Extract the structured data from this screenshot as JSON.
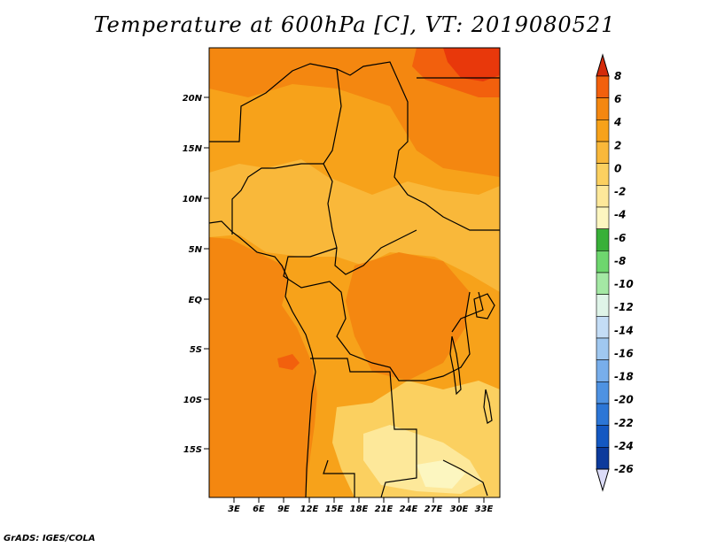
{
  "title": "Temperature at 600hPa [C], VT: 2019080521",
  "footer": "GrADS: IGES/COLA",
  "map": {
    "lon_range": [
      0,
      35
    ],
    "lat_range": [
      -20,
      25
    ],
    "lat_ticks": [
      "20N",
      "15N",
      "10N",
      "5N",
      "EQ",
      "5S",
      "10S",
      "15S"
    ],
    "lon_ticks": [
      "3E",
      "6E",
      "9E",
      "12E",
      "15E",
      "18E",
      "21E",
      "24E",
      "27E",
      "30E",
      "33E"
    ]
  },
  "colorbar": {
    "labels": [
      "8",
      "6",
      "4",
      "2",
      "0",
      "-2",
      "-4",
      "-6",
      "-8",
      "-10",
      "-12",
      "-14",
      "-16",
      "-18",
      "-20",
      "-22",
      "-24",
      "-26"
    ],
    "colors": [
      "#e8380b",
      "#f2600d",
      "#f48710",
      "#f7a21a",
      "#f9b83a",
      "#fbd060",
      "#fde89a",
      "#fcf6c0",
      "#38b038",
      "#6ed66e",
      "#a4e8a4",
      "#dff4e8",
      "#c4ddf6",
      "#a0c8f0",
      "#78aeeb",
      "#4e92e2",
      "#2c76d6",
      "#1458c2",
      "#0c3a9c",
      "#06206e"
    ],
    "top_arrow_color": "#d42a0a",
    "bottom_arrow_color": "#dcdcf8"
  }
}
